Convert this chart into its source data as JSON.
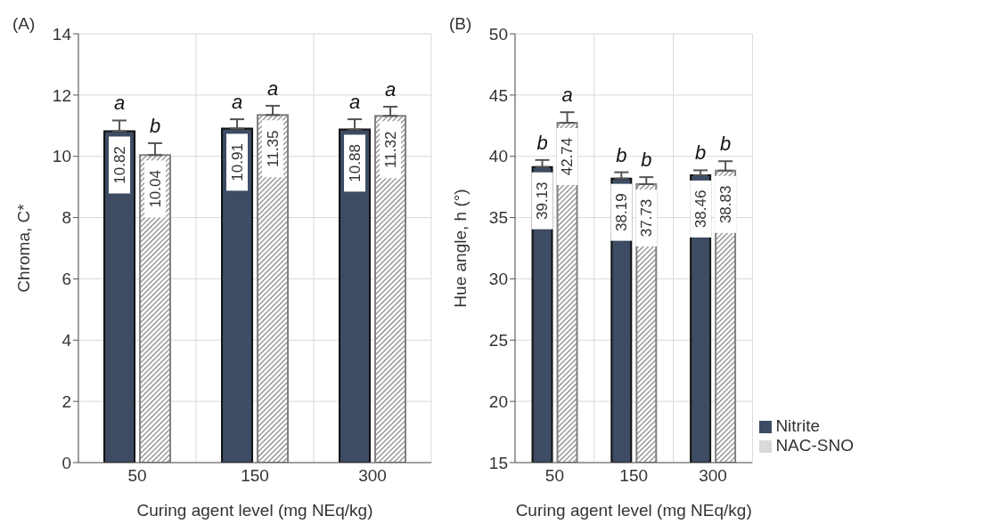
{
  "chart_data": [
    {
      "type": "bar",
      "title": "(A)",
      "xlabel": "Curing agent level (mg NEq/kg)",
      "ylabel": "Chroma, C*",
      "categories": [
        "50",
        "150",
        "300"
      ],
      "series": [
        {
          "color": "#3d4b63",
          "values": [
            10.82,
            10.91,
            10.88
          ],
          "errors": [
            [
              10.82,
              11.17
            ],
            [
              10.91,
              11.21
            ],
            [
              10.88,
              11.21
            ]
          ]
        },
        {
          "color": "#808080",
          "values": [
            10.04,
            11.35,
            11.32
          ],
          "errors": [
            [
              10.04,
              10.43
            ],
            [
              11.35,
              11.65
            ],
            [
              11.32,
              11.62
            ]
          ]
        }
      ],
      "ylim": [
        0,
        14
      ],
      "yticks": [
        0,
        2,
        4,
        6,
        8,
        10,
        12,
        14
      ],
      "grid": true,
      "legend": false,
      "data_labels": true,
      "annotations": [
        "a",
        "b",
        "a",
        "a",
        "a",
        "a"
      ]
    },
    {
      "type": "bar",
      "title": "(B)",
      "xlabel": "Curing agent level (mg NEq/kg)",
      "ylabel": "Hue angle, h (°)",
      "categories": [
        "50",
        "150",
        "300"
      ],
      "series": [
        {
          "name": "Nitrite",
          "color": "#3d4b63",
          "values": [
            39.13,
            38.19,
            38.46
          ],
          "errors": [
            [
              39.13,
              39.7
            ],
            [
              38.19,
              38.7
            ],
            [
              38.46,
              38.86
            ]
          ]
        },
        {
          "name": "NAC-SNO",
          "color": "#808080",
          "values": [
            42.74,
            37.73,
            38.83
          ],
          "errors": [
            [
              42.74,
              43.6
            ],
            [
              37.73,
              38.3
            ],
            [
              38.83,
              39.6
            ]
          ]
        }
      ],
      "ylim": [
        15,
        50
      ],
      "yticks": [
        15,
        20,
        25,
        30,
        35,
        40,
        45,
        50
      ],
      "grid": true,
      "legend": "bottom right",
      "data_labels": true,
      "annotations": [
        "b",
        "a",
        "b",
        "b",
        "b",
        "b"
      ]
    }
  ]
}
